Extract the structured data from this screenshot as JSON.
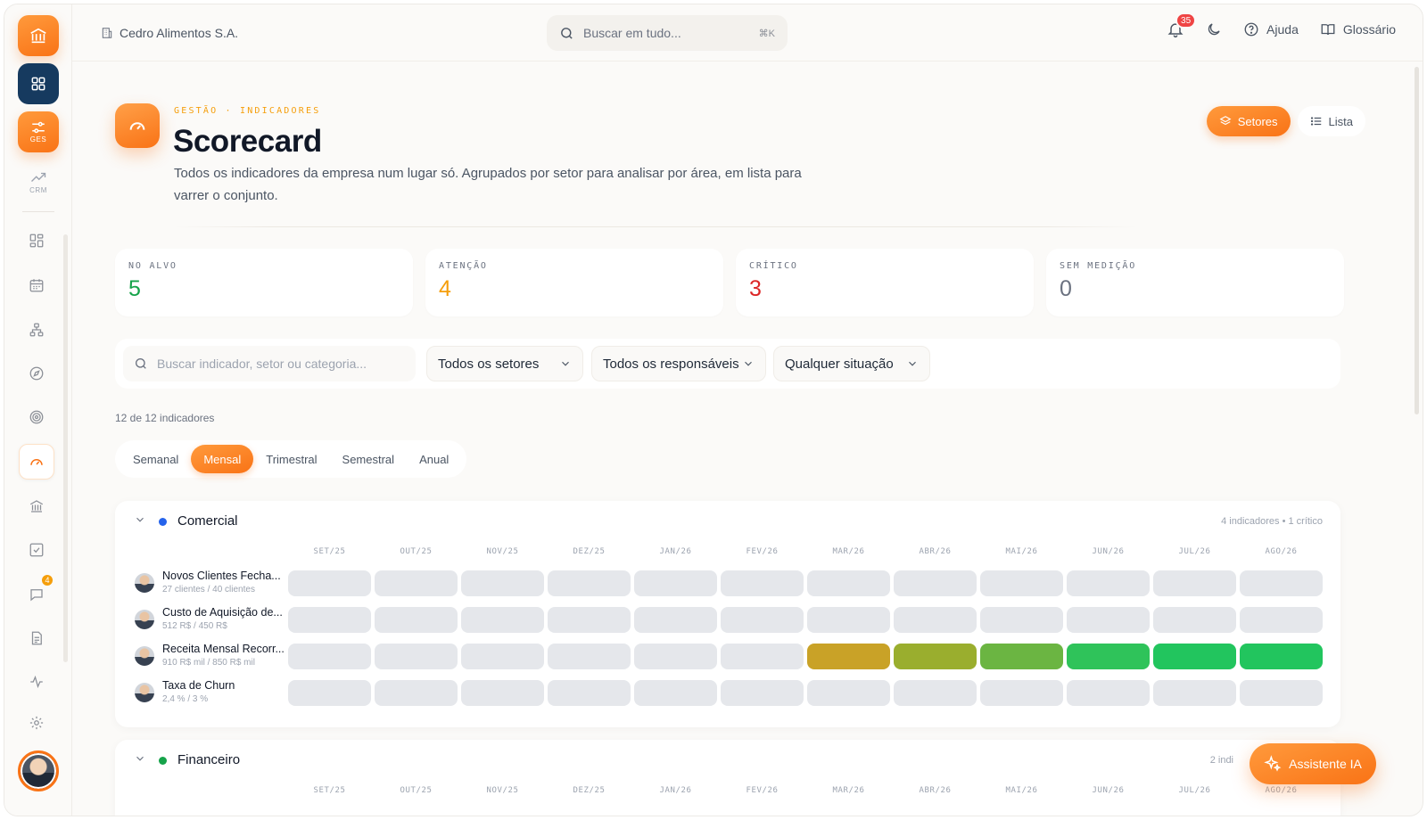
{
  "app": {
    "company": "Cedro Alimentos S.A."
  },
  "rail": {
    "apps": [
      {
        "name": "ges",
        "label": "GES"
      },
      {
        "name": "crm",
        "label": "CRM"
      }
    ],
    "chat_badge": "4"
  },
  "topbar": {
    "search_placeholder": "Buscar em tudo...",
    "search_shortcut": "⌘K",
    "notifications_count": "35",
    "help_label": "Ajuda",
    "glossary_label": "Glossário"
  },
  "header": {
    "eyebrow": "GESTÃO · INDICADORES",
    "title": "Scorecard",
    "description": "Todos os indicadores da empresa num lugar só. Agrupados por setor para analisar por área, em lista para varrer o conjunto.",
    "view_sectors": "Setores",
    "view_list": "Lista"
  },
  "stats": [
    {
      "label": "NO ALVO",
      "value": "5",
      "color": "#16a34a"
    },
    {
      "label": "ATENÇÃO",
      "value": "4",
      "color": "#f59e0b"
    },
    {
      "label": "CRÍTICO",
      "value": "3",
      "color": "#dc2626"
    },
    {
      "label": "SEM MEDIÇÃO",
      "value": "0",
      "color": "#6b7280"
    }
  ],
  "filters": {
    "search_placeholder": "Buscar indicador, setor ou categoria...",
    "sector": "Todos os setores",
    "owner": "Todos os responsáveis",
    "status": "Qualquer situação"
  },
  "count_label": "12 de 12 indicadores",
  "periods": [
    "Semanal",
    "Mensal",
    "Trimestral",
    "Semestral",
    "Anual"
  ],
  "active_period": "Mensal",
  "months": [
    "SET/25",
    "OUT/25",
    "NOV/25",
    "DEZ/25",
    "JAN/26",
    "FEV/26",
    "MAR/26",
    "ABR/26",
    "MAI/26",
    "JUN/26",
    "JUL/26",
    "AGO/26"
  ],
  "sectors": [
    {
      "name": "Comercial",
      "dot_color": "#2563eb",
      "meta": "4 indicadores • 1 crítico",
      "indicators": [
        {
          "name": "Novos Clientes Fecha...",
          "sub": "27 clientes / 40 clientes",
          "cells": [
            "none",
            "none",
            "none",
            "none",
            "none",
            "none",
            "none",
            "none",
            "none",
            "none",
            "none",
            "none"
          ]
        },
        {
          "name": "Custo de Aquisição de...",
          "sub": "512 R$ / 450 R$",
          "cells": [
            "none",
            "none",
            "none",
            "none",
            "none",
            "none",
            "none",
            "none",
            "none",
            "none",
            "none",
            "none"
          ]
        },
        {
          "name": "Receita Mensal Recorr...",
          "sub": "910 R$ mil / 850 R$ mil",
          "cells": [
            "none",
            "none",
            "none",
            "none",
            "none",
            "none",
            "#c9a227",
            "#9aae2e",
            "#6bb542",
            "#2fc35a",
            "#22c55e",
            "#22c55e"
          ]
        },
        {
          "name": "Taxa de Churn",
          "sub": "2,4 % / 3 %",
          "cells": [
            "none",
            "none",
            "none",
            "none",
            "none",
            "none",
            "none",
            "none",
            "none",
            "none",
            "none",
            "none"
          ]
        }
      ]
    },
    {
      "name": "Financeiro",
      "dot_color": "#16a34a",
      "meta": "2 indi",
      "indicators": []
    }
  ],
  "assistant_label": "Assistente IA",
  "colors": {
    "accent": "#f97316",
    "navy": "#163a5f",
    "empty_cell": "#e5e7eb"
  }
}
